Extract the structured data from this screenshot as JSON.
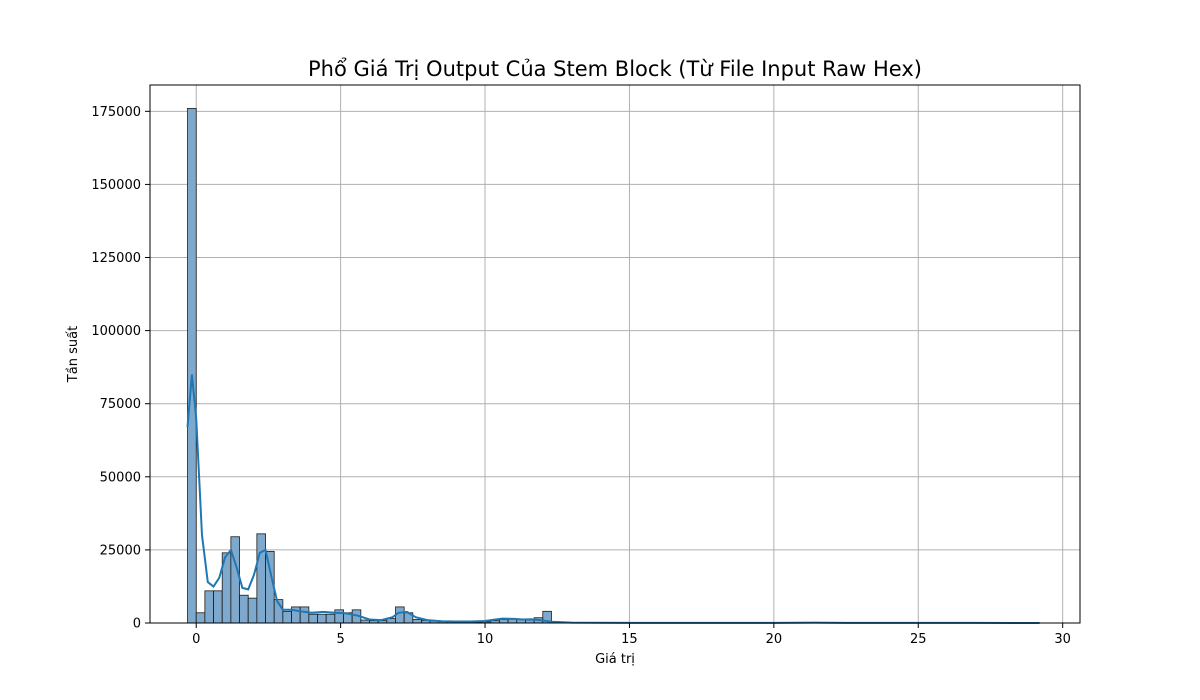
{
  "chart_data": {
    "type": "bar",
    "title": "Phổ Giá Trị Output Của Stem Block (Từ File Input Raw Hex)",
    "xlabel": "Giá trị",
    "ylabel": "Tần suất",
    "xlim": [
      -1.6,
      30.6
    ],
    "ylim": [
      0,
      184000
    ],
    "xticks": [
      0,
      5,
      10,
      15,
      20,
      25,
      30
    ],
    "yticks": [
      0,
      25000,
      50000,
      75000,
      100000,
      125000,
      150000,
      175000
    ],
    "grid": true,
    "legend": "none",
    "bar_color": "#7fa9cc",
    "bar_edge_color": "#1a1a1a",
    "kde_color": "#1f77b4",
    "hist": {
      "bin_start": -0.3,
      "bin_width": 0.3,
      "counts": [
        176000,
        3500,
        11000,
        11000,
        24000,
        29500,
        9500,
        8500,
        30500,
        24500,
        8000,
        4000,
        5500,
        5500,
        3000,
        3000,
        3000,
        4500,
        3500,
        4500,
        1000,
        800,
        800,
        1500,
        5500,
        3500,
        1200,
        900,
        800,
        600,
        500,
        400,
        300,
        300,
        400,
        800,
        1200,
        1300,
        1200,
        1000,
        1800,
        4000,
        400
      ]
    },
    "kde": {
      "x": [
        -0.3,
        -0.15,
        0.0,
        0.2,
        0.4,
        0.6,
        0.8,
        1.0,
        1.2,
        1.4,
        1.6,
        1.8,
        2.0,
        2.2,
        2.4,
        2.6,
        2.8,
        3.0,
        3.3,
        3.6,
        4.0,
        4.4,
        4.8,
        5.2,
        5.6,
        6.0,
        6.4,
        6.8,
        7.0,
        7.3,
        7.6,
        8.0,
        8.5,
        9.0,
        9.5,
        10.0,
        10.3,
        10.6,
        11.0,
        11.3,
        11.6,
        11.9,
        12.3,
        13.0,
        14.0,
        16.0,
        18.0,
        20.0,
        21.4,
        22.5,
        25.0,
        27.0,
        29.2
      ],
      "y": [
        67000,
        85000,
        70000,
        30000,
        14000,
        12500,
        15500,
        22500,
        25000,
        19000,
        12000,
        11500,
        16500,
        24000,
        25000,
        16000,
        7500,
        4500,
        4500,
        4000,
        3500,
        3800,
        3500,
        3300,
        2500,
        1200,
        1000,
        2000,
        3500,
        3800,
        2000,
        1000,
        600,
        500,
        500,
        700,
        1100,
        1500,
        1400,
        1200,
        1300,
        1000,
        400,
        150,
        80,
        50,
        40,
        40,
        120,
        40,
        30,
        20,
        10
      ]
    }
  }
}
